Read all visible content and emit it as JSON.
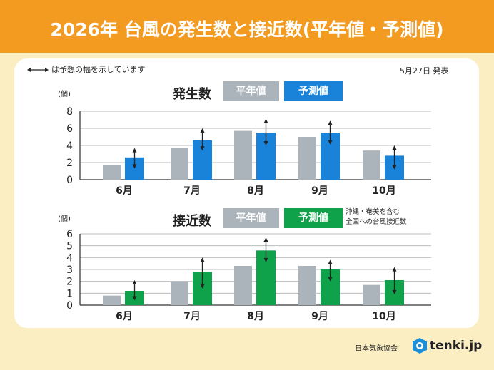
{
  "header": {
    "title": "2026年 台風の発生数と接近数(平年値・予測値)"
  },
  "legend_text": "は予想の幅を示しています",
  "date_text": "5月27日 発表",
  "note": "沖縄・奄美を含む\n全国への台風接近数",
  "footer": {
    "org": "日本気象協会",
    "brand": "tenki.jp"
  },
  "colors": {
    "normal": "#aab4ba",
    "forecast_occurrence": "#1883d9",
    "forecast_approach": "#0fa24a",
    "header": "#f39a20"
  },
  "chart_data": [
    {
      "type": "bar",
      "title": "発生数",
      "ylabel": "(個)",
      "ylim": [
        0,
        8
      ],
      "yticks": [
        0,
        2,
        4,
        6,
        8
      ],
      "categories": [
        "6月",
        "7月",
        "8月",
        "9月",
        "10月"
      ],
      "series": [
        {
          "name": "平年値",
          "values": [
            1.7,
            3.7,
            5.7,
            5.0,
            3.4
          ]
        },
        {
          "name": "予測値",
          "values": [
            2.6,
            4.6,
            5.5,
            5.5,
            2.8
          ],
          "range_low": [
            1.3,
            3.4,
            4.0,
            4.1,
            1.2
          ],
          "range_high": [
            3.7,
            6.0,
            7.1,
            6.9,
            4.0
          ]
        }
      ]
    },
    {
      "type": "bar",
      "title": "接近数",
      "ylabel": "(個)",
      "ylim": [
        0,
        6
      ],
      "yticks": [
        0,
        1,
        2,
        3,
        4,
        5,
        6
      ],
      "categories": [
        "6月",
        "7月",
        "8月",
        "9月",
        "10月"
      ],
      "series": [
        {
          "name": "平年値",
          "values": [
            0.8,
            2.0,
            3.3,
            3.3,
            1.7
          ]
        },
        {
          "name": "予測値",
          "values": [
            1.2,
            2.8,
            4.6,
            3.0,
            2.1
          ],
          "range_low": [
            0.4,
            1.4,
            3.6,
            2.0,
            0.9
          ],
          "range_high": [
            2.1,
            4.0,
            5.7,
            3.8,
            3.2
          ]
        }
      ]
    }
  ]
}
